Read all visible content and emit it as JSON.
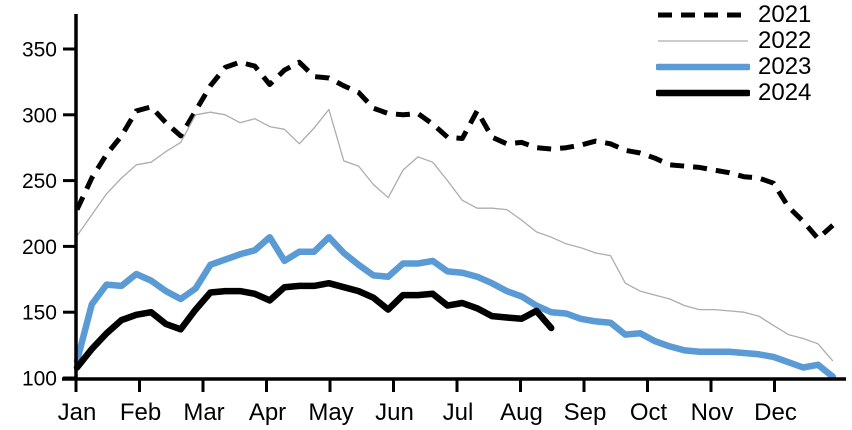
{
  "chart_data": {
    "type": "line",
    "title": "",
    "xlabel": "",
    "ylabel": "",
    "x_axis": {
      "tick_labels": [
        "Jan",
        "Feb",
        "Mar",
        "Apr",
        "May",
        "Jun",
        "Jul",
        "Aug",
        "Sep",
        "Oct",
        "Nov",
        "Dec"
      ]
    },
    "y_axis": {
      "ticks": [
        100,
        150,
        200,
        250,
        300,
        350
      ],
      "range": [
        100,
        378
      ]
    },
    "grid": "off",
    "legend": {
      "position": "top-right",
      "entries": [
        {
          "label": "2021",
          "color": "#000000",
          "style": "dashed",
          "width": 5
        },
        {
          "label": "2022",
          "color": "#adadad",
          "style": "solid",
          "width": 1.3
        },
        {
          "label": "2023",
          "color": "#5b9bd5",
          "style": "solid",
          "width": 6.5
        },
        {
          "label": "2024",
          "color": "#000000",
          "style": "solid",
          "width": 6.5
        }
      ]
    },
    "x_unit": "week-of-year",
    "series": [
      {
        "name": "2021",
        "values": [
          228,
          252,
          270,
          284,
          303,
          306,
          294,
          284,
          303,
          322,
          336,
          340,
          337,
          323,
          334,
          340,
          329,
          328,
          322,
          317,
          305,
          301,
          300,
          301,
          293,
          283,
          282,
          303,
          283,
          278,
          279,
          275,
          274,
          275,
          277,
          280,
          278,
          273,
          271,
          267,
          262,
          261,
          260,
          258,
          256,
          253,
          252,
          248,
          230,
          219,
          206,
          216
        ]
      },
      {
        "name": "2022",
        "values": [
          208,
          224,
          240,
          252,
          262,
          264,
          272,
          279,
          300,
          302,
          300,
          294,
          297,
          291,
          289,
          278,
          290,
          304,
          265,
          261,
          247,
          237,
          258,
          268,
          264,
          250,
          235,
          229,
          229,
          228,
          220,
          211,
          207,
          202,
          199,
          195,
          193,
          172,
          166,
          163,
          160,
          155,
          152,
          152,
          151,
          150,
          147,
          140,
          133,
          130,
          126,
          113
        ]
      },
      {
        "name": "2023",
        "values": [
          113,
          156,
          171,
          170,
          179,
          174,
          166,
          160,
          168,
          186,
          190,
          194,
          197,
          207,
          189,
          196,
          196,
          207,
          195,
          186,
          178,
          177,
          187,
          187,
          189,
          181,
          180,
          177,
          172,
          166,
          162,
          155,
          150,
          149,
          145,
          143,
          142,
          133,
          134,
          128,
          124,
          121,
          120,
          120,
          120,
          119,
          118,
          116,
          112,
          108,
          110,
          101
        ]
      },
      {
        "name": "2024",
        "values": [
          108,
          122,
          134,
          144,
          148,
          150,
          141,
          137,
          152,
          165,
          166,
          166,
          164,
          159,
          169,
          170,
          170,
          172,
          169,
          166,
          161,
          152,
          163,
          163,
          164,
          155,
          157,
          153,
          147,
          146,
          145,
          151,
          138
        ]
      }
    ]
  }
}
